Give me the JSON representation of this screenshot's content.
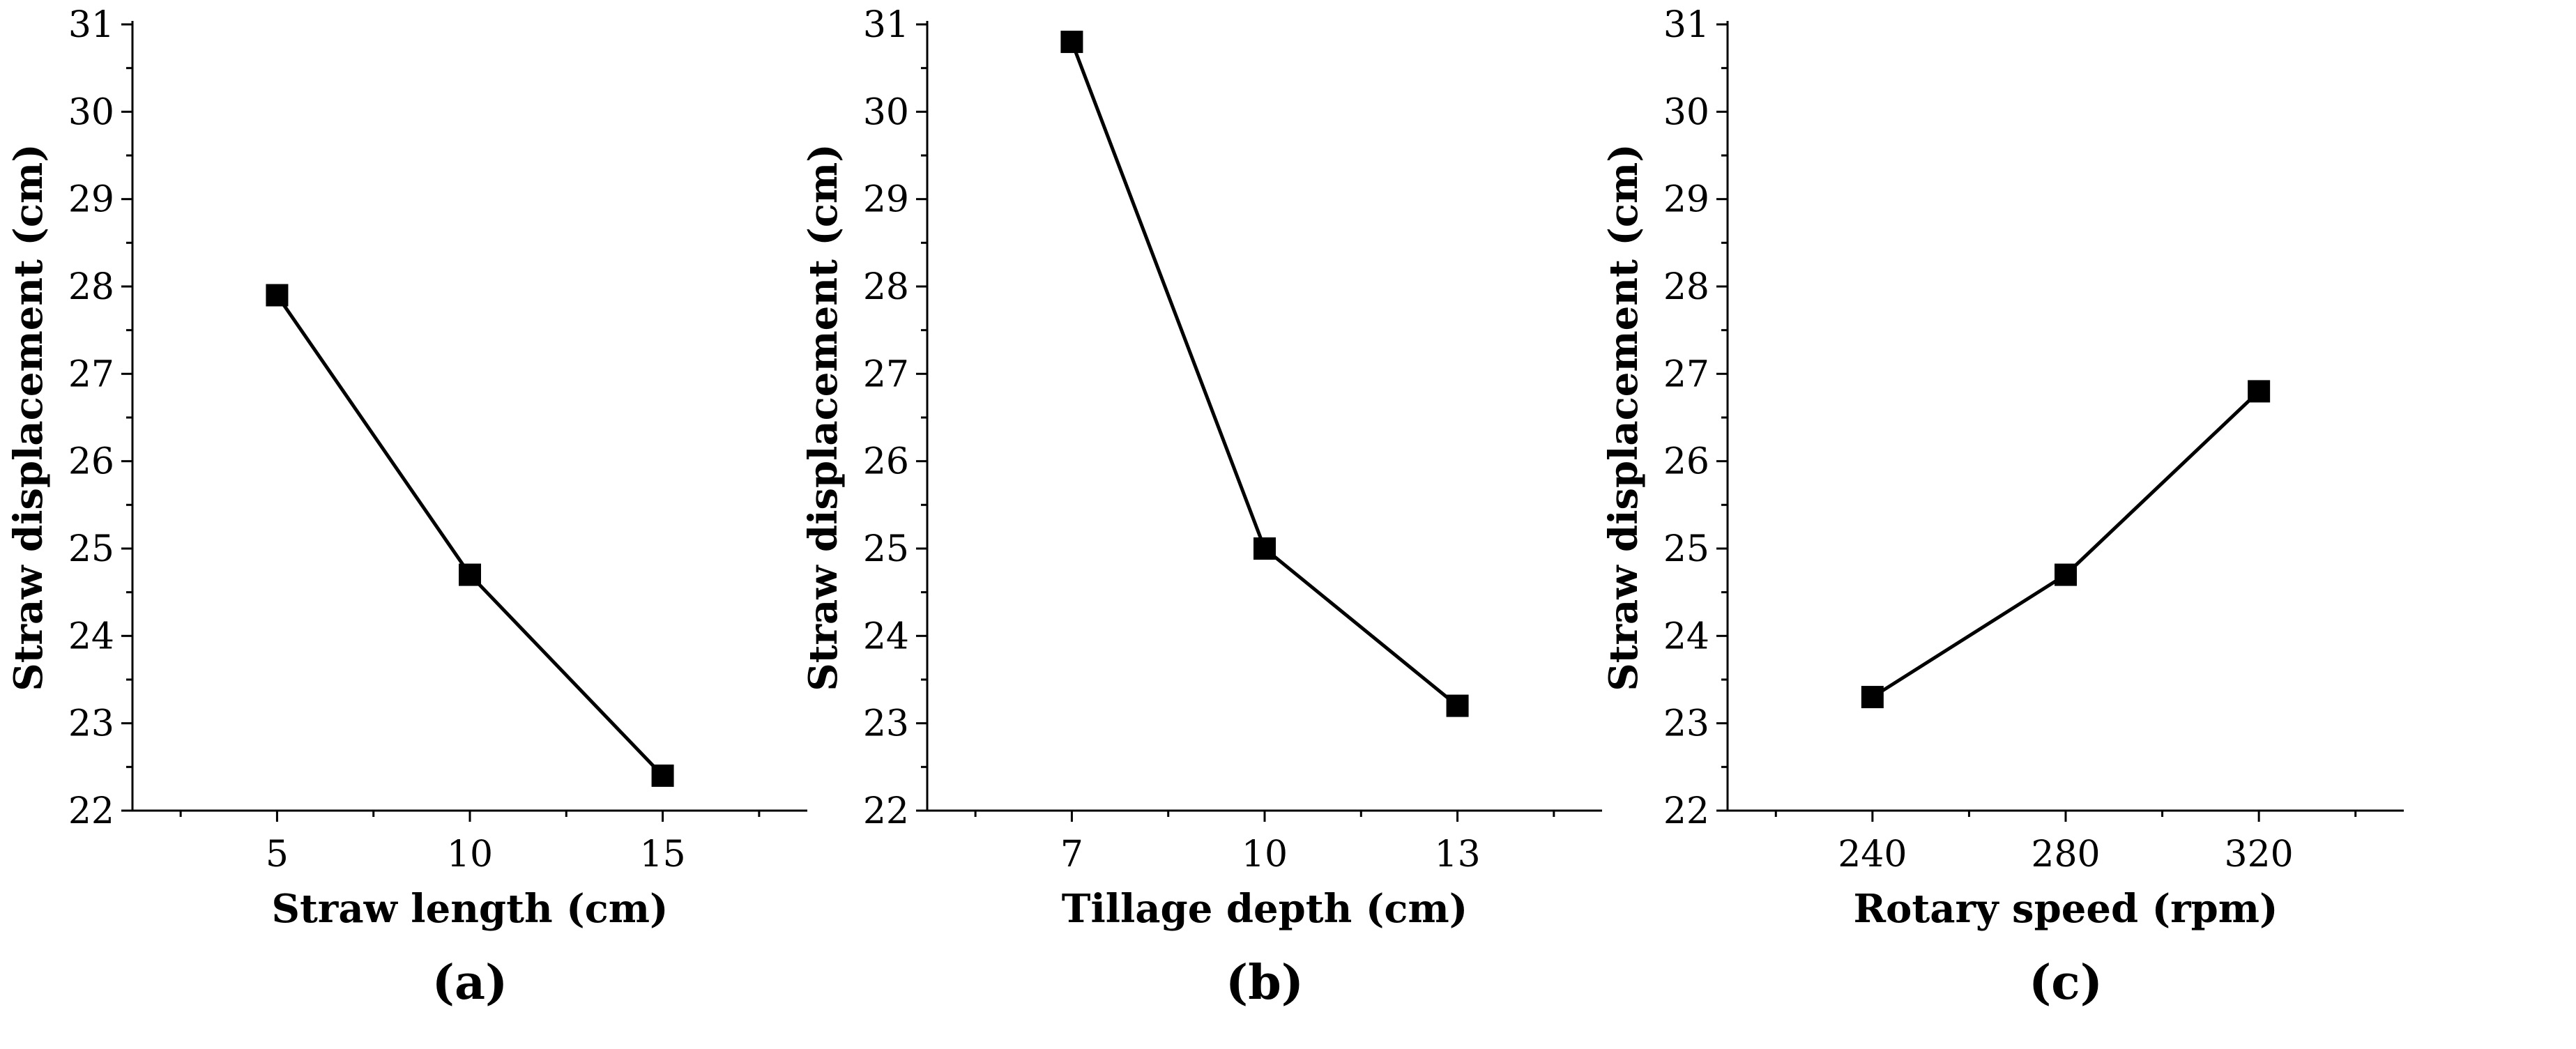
{
  "chart_data": [
    {
      "type": "line",
      "panel_label": "(a)",
      "xlabel": "Straw length (cm)",
      "ylabel": "Straw displacement (cm)",
      "x": [
        5,
        10,
        15
      ],
      "x_tick_labels": [
        "5",
        "10",
        "15"
      ],
      "values": [
        27.9,
        24.7,
        22.4
      ],
      "ylim": [
        22,
        31
      ],
      "y_ticks": [
        22,
        23,
        24,
        25,
        26,
        27,
        28,
        29,
        30,
        31
      ],
      "marker": "square",
      "color": "#000000"
    },
    {
      "type": "line",
      "panel_label": "(b)",
      "xlabel": "Tillage depth (cm)",
      "ylabel": "Straw displacement (cm)",
      "x": [
        7,
        10,
        13
      ],
      "x_tick_labels": [
        "7",
        "10",
        "13"
      ],
      "values": [
        30.8,
        25.0,
        23.2
      ],
      "ylim": [
        22,
        31
      ],
      "y_ticks": [
        22,
        23,
        24,
        25,
        26,
        27,
        28,
        29,
        30,
        31
      ],
      "marker": "square",
      "color": "#000000"
    },
    {
      "type": "line",
      "panel_label": "(c)",
      "xlabel": "Rotary speed (rpm)",
      "ylabel": "Straw displacement (cm)",
      "x": [
        240,
        280,
        320
      ],
      "x_tick_labels": [
        "240",
        "280",
        "320"
      ],
      "values": [
        23.3,
        24.7,
        26.8
      ],
      "ylim": [
        22,
        31
      ],
      "y_ticks": [
        22,
        23,
        24,
        25,
        26,
        27,
        28,
        29,
        30,
        31
      ],
      "marker": "square",
      "color": "#000000"
    }
  ]
}
